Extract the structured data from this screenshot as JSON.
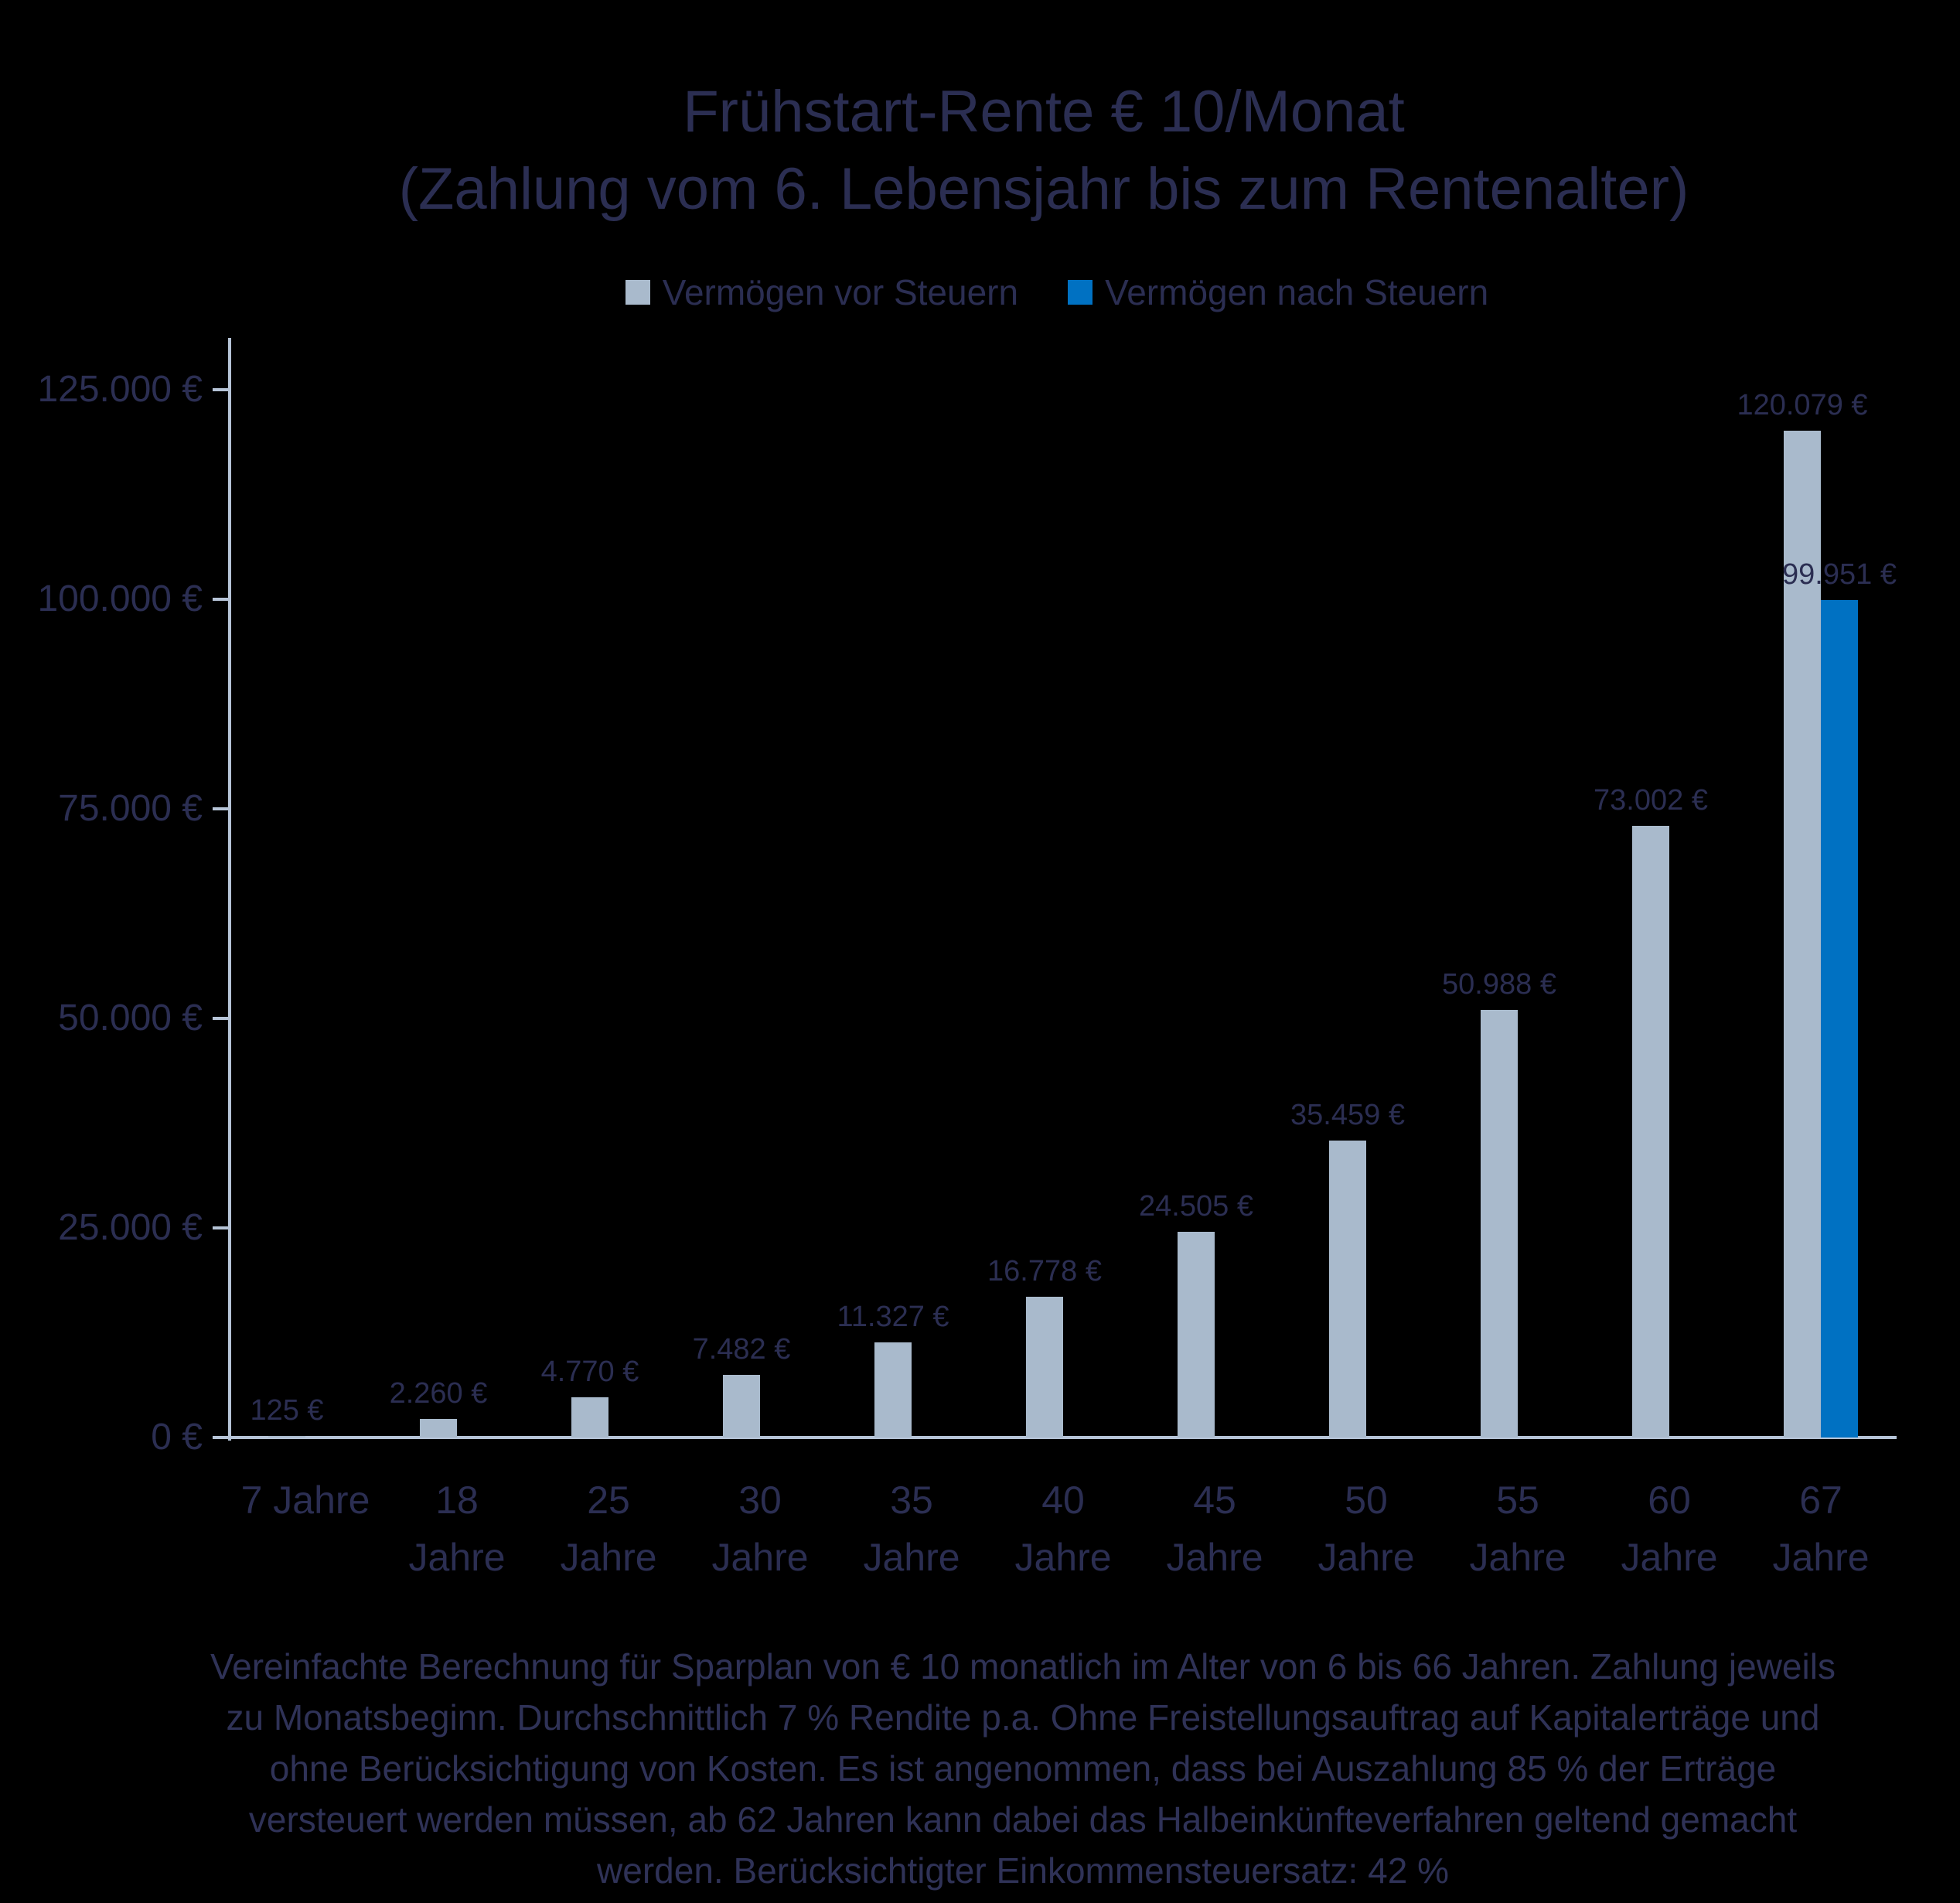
{
  "title": {
    "line1": "Frühstart-Rente € 10/Monat",
    "line2": "(Zahlung vom 6. Lebensjahr bis zum Rentenalter)"
  },
  "legend": {
    "items": [
      {
        "label": "Vermögen vor Steuern",
        "color": "#a9bacc"
      },
      {
        "label": "Vermögen nach Steuern",
        "color": "#0071c2"
      }
    ]
  },
  "chart_data": {
    "type": "bar",
    "title": "Frühstart-Rente € 10/Monat (Zahlung vom 6. Lebensjahr bis zum Rentenalter)",
    "categories": [
      "7 Jahre",
      "18 Jahre",
      "25 Jahre",
      "30 Jahre",
      "35 Jahre",
      "40 Jahre",
      "45 Jahre",
      "50 Jahre",
      "55 Jahre",
      "60 Jahre",
      "67 Jahre"
    ],
    "category_label_lines": [
      [
        "7 Jahre",
        ""
      ],
      [
        "18",
        "Jahre"
      ],
      [
        "25",
        "Jahre"
      ],
      [
        "30",
        "Jahre"
      ],
      [
        "35",
        "Jahre"
      ],
      [
        "40",
        "Jahre"
      ],
      [
        "45",
        "Jahre"
      ],
      [
        "50",
        "Jahre"
      ],
      [
        "55",
        "Jahre"
      ],
      [
        "60",
        "Jahre"
      ],
      [
        "67",
        "Jahre"
      ]
    ],
    "xlabel": "",
    "ylabel": "",
    "ylim": [
      0,
      125000
    ],
    "grid": false,
    "legend_position": "top",
    "background": "#000000",
    "text_color": "#2b2e52",
    "axis_color": "#b6c4d7",
    "y_ticks": [
      {
        "value": 0,
        "label": "0 €"
      },
      {
        "value": 25000,
        "label": "25.000 €"
      },
      {
        "value": 50000,
        "label": "50.000 €"
      },
      {
        "value": 75000,
        "label": "75.000 €"
      },
      {
        "value": 100000,
        "label": "100.000 €"
      },
      {
        "value": 125000,
        "label": "125.000 €"
      }
    ],
    "series": [
      {
        "name": "Vermögen vor Steuern",
        "color": "#a9bacc",
        "values": [
          125,
          2260,
          4770,
          7482,
          11327,
          16778,
          24505,
          35459,
          50988,
          73002,
          120079
        ],
        "data_labels": [
          "125 €",
          "2.260 €",
          "4.770 €",
          "7.482 €",
          "11.327 €",
          "16.778 €",
          "24.505 €",
          "35.459 €",
          "50.988 €",
          "73.002 €",
          "120.079 €"
        ]
      },
      {
        "name": "Vermögen nach Steuern",
        "color": "#0071c2",
        "values": [
          null,
          null,
          null,
          null,
          null,
          null,
          null,
          null,
          null,
          null,
          99951
        ],
        "data_labels": [
          null,
          null,
          null,
          null,
          null,
          null,
          null,
          null,
          null,
          null,
          "99.951 €"
        ]
      }
    ]
  },
  "footnote": "Vereinfachte Berechnung für Sparplan von € 10 monatlich im Alter von 6 bis 66 Jahren. Zahlung jeweils zu Monatsbeginn. Durchschnittlich 7 % Rendite p.a. Ohne Freistellungsauftrag auf Kapitalerträge und ohne Berücksichtigung von Kosten. Es ist angenommen, dass bei Auszahlung 85 % der Erträge versteuert werden müssen, ab 62 Jahren kann dabei das Halbeinkünfteverfahren geltend gemacht werden. Berücksichtigter Einkommensteuersatz: 42 %"
}
